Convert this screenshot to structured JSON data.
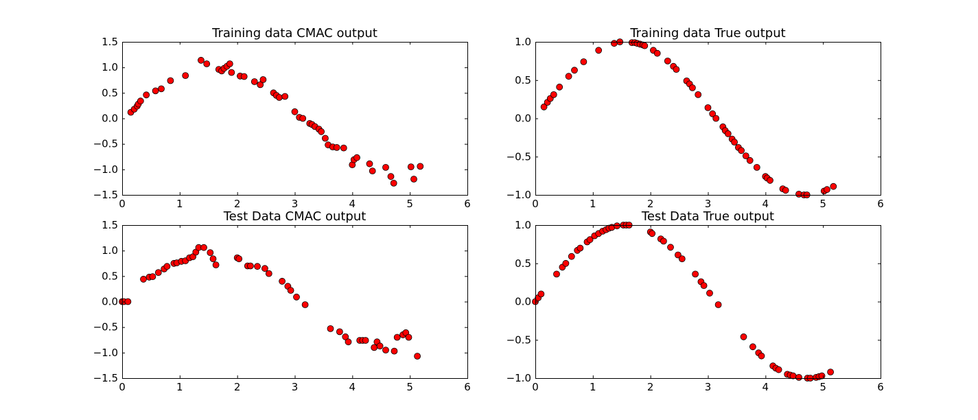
{
  "marker_color": "#ff0000",
  "marker_edge_color": "#000000",
  "chart_data": [
    {
      "type": "scatter",
      "title": "Training data CMAC output",
      "xlabel": "",
      "ylabel": "",
      "xlim": [
        0,
        6
      ],
      "ylim": [
        -1.5,
        1.5
      ],
      "xticks": [
        0,
        1,
        2,
        3,
        4,
        5,
        6
      ],
      "yticks": [
        -1.5,
        -1.0,
        -0.5,
        0.0,
        0.5,
        1.0,
        1.5
      ],
      "xtick_labels": [
        "0",
        "1",
        "2",
        "3",
        "4",
        "5",
        "6"
      ],
      "ytick_labels": [
        "−1.5",
        "−1.0",
        "−0.5",
        "0.0",
        "0.5",
        "1.0",
        "1.5"
      ],
      "grid": false,
      "series": [
        {
          "x": [
            0.15,
            0.21,
            0.26,
            0.28,
            0.32,
            0.42,
            0.58,
            0.68,
            0.84,
            1.1,
            1.37,
            1.47,
            1.68,
            1.73,
            1.77,
            1.82,
            1.87,
            1.9,
            2.05,
            2.12,
            2.3,
            2.4,
            2.45,
            2.63,
            2.68,
            2.73,
            2.83,
            3.0,
            3.08,
            3.14,
            3.26,
            3.3,
            3.35,
            3.42,
            3.46,
            3.53,
            3.58,
            3.66,
            3.73,
            3.85,
            4.0,
            4.03,
            4.08,
            4.3,
            4.35,
            4.58,
            4.67,
            4.72,
            5.02,
            5.07,
            5.18
          ],
          "y": [
            0.12,
            0.18,
            0.24,
            0.28,
            0.34,
            0.46,
            0.54,
            0.58,
            0.74,
            0.84,
            1.14,
            1.07,
            0.96,
            0.93,
            0.98,
            1.02,
            1.07,
            0.9,
            0.83,
            0.82,
            0.72,
            0.66,
            0.76,
            0.5,
            0.45,
            0.41,
            0.43,
            0.13,
            0.02,
            0.0,
            -0.1,
            -0.12,
            -0.16,
            -0.21,
            -0.26,
            -0.39,
            -0.52,
            -0.56,
            -0.57,
            -0.58,
            -0.91,
            -0.81,
            -0.77,
            -0.89,
            -1.03,
            -0.96,
            -1.14,
            -1.27,
            -0.95,
            -1.19,
            -0.94
          ]
        }
      ]
    },
    {
      "type": "scatter",
      "title": "Training data True output",
      "xlabel": "",
      "ylabel": "",
      "xlim": [
        0,
        6
      ],
      "ylim": [
        -1.0,
        1.0
      ],
      "xticks": [
        0,
        1,
        2,
        3,
        4,
        5,
        6
      ],
      "yticks": [
        -1.0,
        -0.5,
        0.0,
        0.5,
        1.0
      ],
      "xtick_labels": [
        "0",
        "1",
        "2",
        "3",
        "4",
        "5",
        "6"
      ],
      "ytick_labels": [
        "−1.0",
        "−0.5",
        "0.0",
        "0.5",
        "1.0"
      ],
      "grid": false,
      "series": [
        {
          "x": [
            0.15,
            0.21,
            0.26,
            0.32,
            0.42,
            0.58,
            0.68,
            0.84,
            1.1,
            1.37,
            1.47,
            1.68,
            1.73,
            1.77,
            1.82,
            1.87,
            1.9,
            2.05,
            2.12,
            2.3,
            2.4,
            2.45,
            2.63,
            2.68,
            2.73,
            2.83,
            3.0,
            3.08,
            3.14,
            3.26,
            3.3,
            3.35,
            3.42,
            3.46,
            3.53,
            3.58,
            3.66,
            3.73,
            3.85,
            4.0,
            4.03,
            4.08,
            4.3,
            4.35,
            4.58,
            4.67,
            4.72,
            5.02,
            5.07,
            5.18
          ],
          "y": [
            0.15,
            0.21,
            0.26,
            0.31,
            0.41,
            0.55,
            0.63,
            0.74,
            0.89,
            0.98,
            1.0,
            0.99,
            0.99,
            0.98,
            0.97,
            0.96,
            0.95,
            0.89,
            0.85,
            0.75,
            0.68,
            0.64,
            0.49,
            0.45,
            0.4,
            0.31,
            0.14,
            0.06,
            0.0,
            -0.11,
            -0.16,
            -0.2,
            -0.27,
            -0.31,
            -0.38,
            -0.42,
            -0.49,
            -0.55,
            -0.64,
            -0.76,
            -0.78,
            -0.81,
            -0.92,
            -0.94,
            -0.99,
            -1.0,
            -1.0,
            -0.95,
            -0.93,
            -0.89
          ]
        }
      ]
    },
    {
      "type": "scatter",
      "title": "Test Data CMAC output",
      "xlabel": "",
      "ylabel": "",
      "xlim": [
        0,
        6
      ],
      "ylim": [
        -1.5,
        1.5
      ],
      "xticks": [
        0,
        1,
        2,
        3,
        4,
        5,
        6
      ],
      "yticks": [
        -1.5,
        -1.0,
        -0.5,
        0.0,
        0.5,
        1.0,
        1.5
      ],
      "xtick_labels": [
        "0",
        "1",
        "2",
        "3",
        "4",
        "5",
        "6"
      ],
      "ytick_labels": [
        "−1.5",
        "−1.0",
        "−0.5",
        "0.0",
        "0.5",
        "1.0",
        "1.5"
      ],
      "grid": false,
      "series": [
        {
          "x": [
            0.0,
            0.03,
            0.1,
            0.37,
            0.47,
            0.53,
            0.63,
            0.73,
            0.78,
            0.9,
            0.95,
            1.03,
            1.1,
            1.17,
            1.23,
            1.28,
            1.33,
            1.42,
            1.53,
            1.58,
            1.63,
            2.0,
            2.03,
            2.18,
            2.23,
            2.35,
            2.48,
            2.55,
            2.78,
            2.88,
            2.93,
            3.03,
            3.18,
            3.62,
            3.78,
            3.88,
            3.93,
            4.13,
            4.18,
            4.23,
            4.38,
            4.43,
            4.48,
            4.58,
            4.73,
            4.78,
            4.88,
            4.93,
            4.98,
            5.13
          ],
          "y": [
            0.0,
            0.0,
            0.0,
            0.44,
            0.48,
            0.49,
            0.57,
            0.64,
            0.69,
            0.75,
            0.76,
            0.79,
            0.8,
            0.86,
            0.88,
            0.97,
            1.06,
            1.06,
            0.96,
            0.84,
            0.72,
            0.86,
            0.84,
            0.7,
            0.7,
            0.69,
            0.65,
            0.55,
            0.4,
            0.3,
            0.22,
            0.09,
            -0.06,
            -0.53,
            -0.59,
            -0.69,
            -0.79,
            -0.76,
            -0.76,
            -0.76,
            -0.9,
            -0.79,
            -0.87,
            -0.95,
            -0.97,
            -0.7,
            -0.65,
            -0.61,
            -0.7,
            -1.07
          ]
        }
      ]
    },
    {
      "type": "scatter",
      "title": "Test Data True output",
      "xlabel": "",
      "ylabel": "",
      "xlim": [
        0,
        6
      ],
      "ylim": [
        -1.0,
        1.0
      ],
      "xticks": [
        0,
        1,
        2,
        3,
        4,
        5,
        6
      ],
      "yticks": [
        -1.0,
        -0.5,
        0.0,
        0.5,
        1.0
      ],
      "xtick_labels": [
        "0",
        "1",
        "2",
        "3",
        "4",
        "5",
        "6"
      ],
      "ytick_labels": [
        "−1.0",
        "−0.5",
        "0.0",
        "0.5",
        "1.0"
      ],
      "grid": false,
      "series": [
        {
          "x": [
            0.0,
            0.05,
            0.1,
            0.37,
            0.47,
            0.53,
            0.63,
            0.73,
            0.78,
            0.9,
            0.95,
            1.03,
            1.1,
            1.17,
            1.23,
            1.28,
            1.33,
            1.42,
            1.53,
            1.58,
            1.63,
            2.0,
            2.03,
            2.18,
            2.23,
            2.35,
            2.48,
            2.55,
            2.78,
            2.88,
            2.93,
            3.03,
            3.18,
            3.62,
            3.78,
            3.88,
            3.93,
            4.13,
            4.18,
            4.23,
            4.38,
            4.43,
            4.48,
            4.58,
            4.73,
            4.78,
            4.88,
            4.93,
            4.98,
            5.13
          ],
          "y": [
            0.0,
            0.05,
            0.1,
            0.36,
            0.45,
            0.5,
            0.59,
            0.67,
            0.7,
            0.78,
            0.81,
            0.86,
            0.89,
            0.92,
            0.94,
            0.96,
            0.97,
            0.99,
            1.0,
            1.0,
            1.0,
            0.91,
            0.89,
            0.82,
            0.79,
            0.71,
            0.61,
            0.56,
            0.36,
            0.26,
            0.21,
            0.11,
            -0.04,
            -0.46,
            -0.59,
            -0.67,
            -0.71,
            -0.84,
            -0.87,
            -0.89,
            -0.95,
            -0.96,
            -0.97,
            -0.99,
            -1.0,
            -1.0,
            -0.99,
            -0.98,
            -0.97,
            -0.92
          ]
        }
      ]
    }
  ]
}
